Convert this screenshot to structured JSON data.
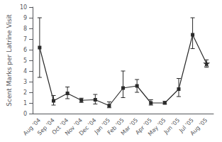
{
  "chart_data": {
    "type": "line",
    "categories": [
      "Aug '04",
      "Sep '04",
      "Oct '04",
      "Nov '04",
      "Dec '04",
      "Jan '05",
      "Feb '05",
      "Mar '05",
      "Apr '05",
      "May '05",
      "Jun '05",
      "Jul '05",
      "Aug '05"
    ],
    "values": [
      6.2,
      1.2,
      1.9,
      1.25,
      1.3,
      0.75,
      2.4,
      2.6,
      1.0,
      1.0,
      2.3,
      7.4,
      4.7
    ],
    "error_upper": [
      2.8,
      0.5,
      0.6,
      0.2,
      0.5,
      0.35,
      1.6,
      0.6,
      0.3,
      0.15,
      1.0,
      1.6,
      0.35
    ],
    "error_lower": [
      2.8,
      0.4,
      0.5,
      0.2,
      0.4,
      0.2,
      0.9,
      0.6,
      0.2,
      0.1,
      0.7,
      1.3,
      0.35
    ],
    "ylabel": "Scent Marks per Latrine Visit",
    "ylim": [
      0,
      10
    ],
    "yticks": [
      0,
      1,
      2,
      3,
      4,
      5,
      6,
      7,
      8,
      9,
      10
    ],
    "color": "#2b2b2b",
    "marker": "square",
    "grid": false
  }
}
